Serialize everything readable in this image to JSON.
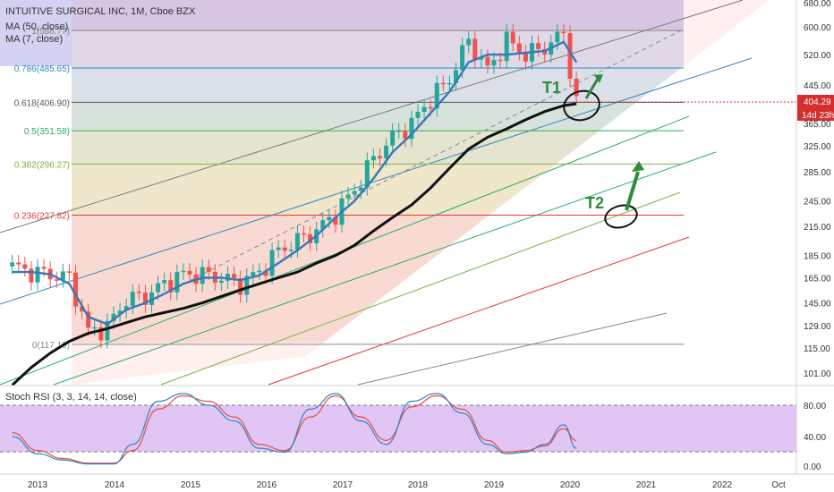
{
  "header": {
    "symbol_line": "INTUITIVE SURGICAL INC, 1M, Cboe BZX",
    "ma50_line": "MA (50, close)",
    "ma7_line": "MA (7, close)"
  },
  "price_axis": {
    "ticks": [
      680.0,
      600.0,
      520.0,
      445.0,
      365.0,
      325.0,
      285.0,
      245.0,
      215.0,
      185.0,
      165.0,
      145.0,
      129.0,
      115.0,
      101.0
    ],
    "last_price": "404.29",
    "countdown": "14d 23h",
    "last_price_color": "#d32f2f"
  },
  "time_axis": {
    "labels": [
      "2013",
      "2014",
      "2015",
      "2016",
      "2017",
      "2018",
      "2019",
      "2020",
      "2021",
      "2022",
      "Oct"
    ]
  },
  "fib_levels": [
    {
      "label": "0.786(485.65)",
      "value": 485.65,
      "color": "#2e86c1"
    },
    {
      "label": "0.618(406.90)",
      "value": 406.9,
      "color": "#555555"
    },
    {
      "label": "0.5(351.58)",
      "value": 351.58,
      "color": "#27ae60"
    },
    {
      "label": "0.382(296.27)",
      "value": 296.27,
      "color": "#7cb342"
    },
    {
      "label": "0.236(227.82)",
      "value": 227.82,
      "color": "#e53935"
    },
    {
      "label": "0(117.19)",
      "value": 117.19,
      "color": "#888888"
    },
    {
      "label": "1(588.77)",
      "value": 588.77,
      "color": "#888888"
    }
  ],
  "annotations": [
    {
      "text": "T1",
      "color": "#2e8b3e"
    },
    {
      "text": "T2",
      "color": "#2e8b3e"
    }
  ],
  "stoch_panel": {
    "title": "Stoch RSI (3, 3, 14, 14, close)",
    "ticks": [
      "80.00",
      "40.00",
      "0.00"
    ],
    "upper": 80,
    "lower": 20
  },
  "chart_data": {
    "type": "line",
    "x": [
      "2012-09",
      "2012-12",
      "2013-03",
      "2013-06",
      "2013-09",
      "2013-12",
      "2014-03",
      "2014-06",
      "2014-09",
      "2014-12",
      "2015-03",
      "2015-06",
      "2015-09",
      "2015-12",
      "2016-03",
      "2016-06",
      "2016-09",
      "2016-12",
      "2017-03",
      "2017-06",
      "2017-09",
      "2017-12",
      "2018-03",
      "2018-06",
      "2018-09",
      "2018-12",
      "2019-03",
      "2019-06",
      "2019-09",
      "2019-12",
      "2020-02"
    ],
    "series": [
      {
        "name": "Close",
        "values": [
          175,
          170,
          168,
          165,
          125,
          128,
          148,
          150,
          160,
          168,
          168,
          165,
          160,
          170,
          190,
          200,
          210,
          230,
          260,
          305,
          340,
          365,
          415,
          460,
          560,
          480,
          560,
          520,
          540,
          580,
          405
        ]
      },
      {
        "name": "MA (7, close)",
        "values": [
          170,
          170,
          168,
          160,
          135,
          130,
          140,
          145,
          152,
          160,
          165,
          165,
          163,
          167,
          178,
          190,
          205,
          225,
          245,
          275,
          315,
          345,
          385,
          430,
          500,
          520,
          520,
          525,
          530,
          555,
          500
        ]
      },
      {
        "name": "MA (50, close)",
        "values": [
          95,
          104,
          112,
          119,
          124,
          127,
          131,
          135,
          138,
          141,
          145,
          150,
          155,
          160,
          165,
          170,
          178,
          185,
          195,
          210,
          225,
          240,
          262,
          290,
          320,
          340,
          355,
          372,
          388,
          400,
          404
        ]
      }
    ],
    "ylim": [
      95,
      690
    ],
    "log_scale": true,
    "grid": false
  },
  "stoch_data": {
    "x": [
      "2012-09",
      "2013-01",
      "2013-05",
      "2013-09",
      "2014-01",
      "2014-04",
      "2014-08",
      "2014-12",
      "2015-04",
      "2015-08",
      "2015-12",
      "2016-04",
      "2016-08",
      "2016-12",
      "2017-04",
      "2017-08",
      "2017-12",
      "2018-04",
      "2018-08",
      "2018-12",
      "2019-03",
      "2019-06",
      "2019-09",
      "2019-12",
      "2020-02"
    ],
    "k": [
      40,
      18,
      10,
      5,
      5,
      30,
      85,
      95,
      80,
      60,
      25,
      20,
      75,
      95,
      60,
      30,
      85,
      95,
      70,
      30,
      18,
      20,
      30,
      55,
      25
    ],
    "d": [
      45,
      22,
      12,
      6,
      6,
      22,
      75,
      92,
      85,
      65,
      30,
      22,
      65,
      92,
      65,
      35,
      78,
      92,
      75,
      35,
      20,
      22,
      28,
      50,
      35
    ]
  }
}
